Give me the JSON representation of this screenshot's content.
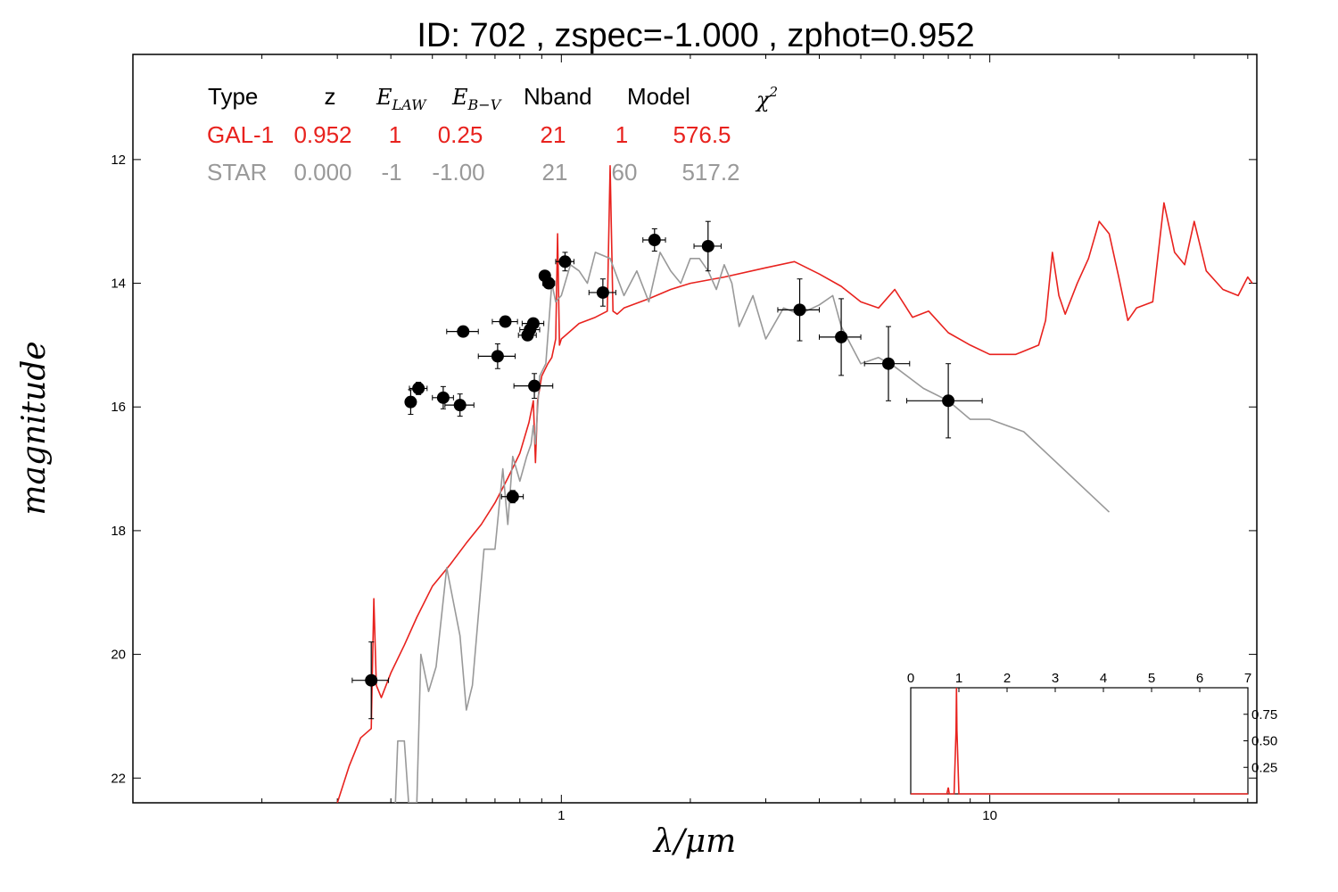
{
  "chart_data": {
    "type": "scatter",
    "title": "ID:  702   , zspec=-1.000 , zphot=0.952",
    "xlabel": "λ/μm",
    "ylabel": "magnitude",
    "xscale": "log",
    "xlim": [
      0.1,
      42
    ],
    "ylim": [
      22.4,
      10.3
    ],
    "x_ticks": [
      {
        "value": 1,
        "label": "1"
      },
      {
        "value": 10,
        "label": "10"
      }
    ],
    "y_ticks": [
      {
        "value": 12,
        "label": "12"
      },
      {
        "value": 14,
        "label": "14"
      },
      {
        "value": 16,
        "label": "16"
      },
      {
        "value": 18,
        "label": "18"
      },
      {
        "value": 20,
        "label": "20"
      },
      {
        "value": 22,
        "label": "22"
      }
    ],
    "table": {
      "headers": [
        "Type",
        "z",
        "E_LAW",
        "E_B-V",
        "Nband",
        "Model",
        "χ²"
      ],
      "rows": [
        {
          "type": "GAL-1",
          "z": "0.952",
          "elaw": "1",
          "ebv": "0.25",
          "nband": "21",
          "model": "1",
          "chi2": "576.5",
          "color": "#e8221e"
        },
        {
          "type": "STAR",
          "z": "0.000",
          "elaw": "-1",
          "ebv": "-1.00",
          "nband": "21",
          "model": "60",
          "chi2": "517.2",
          "color": "#999999"
        }
      ]
    },
    "photometry": [
      {
        "x": 0.36,
        "y": 20.42,
        "xerr": 0.035,
        "yerr": 0.62
      },
      {
        "x": 0.445,
        "y": 15.92,
        "xerr": 0.012,
        "yerr": 0.2
      },
      {
        "x": 0.464,
        "y": 15.7,
        "xerr": 0.022,
        "yerr": 0.1
      },
      {
        "x": 0.53,
        "y": 15.85,
        "xerr": 0.03,
        "yerr": 0.18
      },
      {
        "x": 0.58,
        "y": 15.97,
        "xerr": 0.045,
        "yerr": 0.18
      },
      {
        "x": 0.59,
        "y": 14.78,
        "xerr": 0.05,
        "yerr": 0.08
      },
      {
        "x": 0.71,
        "y": 15.18,
        "xerr": 0.07,
        "yerr": 0.2
      },
      {
        "x": 0.74,
        "y": 14.62,
        "xerr": 0.05,
        "yerr": 0.06
      },
      {
        "x": 0.77,
        "y": 17.45,
        "xerr": 0.045,
        "yerr": 0.1
      },
      {
        "x": 0.834,
        "y": 14.84,
        "xerr": 0.04,
        "yerr": 0.08
      },
      {
        "x": 0.845,
        "y": 14.75,
        "xerr": 0.045,
        "yerr": 0.08
      },
      {
        "x": 0.86,
        "y": 14.65,
        "xerr": 0.05,
        "yerr": 0.08
      },
      {
        "x": 0.865,
        "y": 15.66,
        "xerr": 0.09,
        "yerr": 0.2
      },
      {
        "x": 0.915,
        "y": 13.88,
        "xerr": 0.025,
        "yerr": 0.08
      },
      {
        "x": 0.935,
        "y": 14.0,
        "xerr": 0.03,
        "yerr": 0.08
      },
      {
        "x": 1.02,
        "y": 13.65,
        "xerr": 0.05,
        "yerr": 0.15
      },
      {
        "x": 1.25,
        "y": 14.15,
        "xerr": 0.09,
        "yerr": 0.22
      },
      {
        "x": 1.65,
        "y": 13.3,
        "xerr": 0.1,
        "yerr": 0.18
      },
      {
        "x": 2.2,
        "y": 13.4,
        "xerr": 0.16,
        "yerr": 0.4
      },
      {
        "x": 3.6,
        "y": 14.43,
        "xerr": 0.4,
        "yerr": 0.5
      },
      {
        "x": 4.5,
        "y": 14.87,
        "xerr": 0.5,
        "yerr": 0.62
      },
      {
        "x": 5.8,
        "y": 15.3,
        "xerr": 0.7,
        "yerr": 0.6
      },
      {
        "x": 8.0,
        "y": 15.9,
        "xerr": 1.6,
        "yerr": 0.6
      }
    ],
    "series": [
      {
        "color": "#e8221e",
        "points": [
          [
            0.3,
            22.4
          ],
          [
            0.32,
            21.8
          ],
          [
            0.34,
            21.35
          ],
          [
            0.36,
            21.2
          ],
          [
            0.365,
            19.1
          ],
          [
            0.37,
            20.5
          ],
          [
            0.38,
            20.7
          ],
          [
            0.4,
            20.3
          ],
          [
            0.43,
            19.85
          ],
          [
            0.46,
            19.4
          ],
          [
            0.5,
            18.9
          ],
          [
            0.55,
            18.55
          ],
          [
            0.6,
            18.2
          ],
          [
            0.65,
            17.9
          ],
          [
            0.7,
            17.55
          ],
          [
            0.75,
            17.15
          ],
          [
            0.8,
            16.75
          ],
          [
            0.84,
            16.25
          ],
          [
            0.86,
            15.9
          ],
          [
            0.87,
            16.9
          ],
          [
            0.88,
            15.9
          ],
          [
            0.9,
            15.5
          ],
          [
            0.93,
            15.3
          ],
          [
            0.95,
            15.2
          ],
          [
            0.97,
            14.9
          ],
          [
            0.98,
            13.2
          ],
          [
            0.99,
            15.0
          ],
          [
            1.0,
            14.9
          ],
          [
            1.1,
            14.65
          ],
          [
            1.2,
            14.55
          ],
          [
            1.28,
            14.45
          ],
          [
            1.3,
            12.1
          ],
          [
            1.32,
            14.45
          ],
          [
            1.35,
            14.5
          ],
          [
            1.4,
            14.4
          ],
          [
            1.6,
            14.25
          ],
          [
            1.8,
            14.1
          ],
          [
            2.0,
            14.0
          ],
          [
            2.4,
            13.9
          ],
          [
            3.0,
            13.75
          ],
          [
            3.5,
            13.65
          ],
          [
            4.0,
            13.85
          ],
          [
            4.5,
            14.05
          ],
          [
            5.0,
            14.3
          ],
          [
            5.5,
            14.4
          ],
          [
            6.0,
            14.1
          ],
          [
            6.6,
            14.55
          ],
          [
            7.2,
            14.45
          ],
          [
            8.0,
            14.8
          ],
          [
            9.0,
            15.0
          ],
          [
            10.0,
            15.15
          ],
          [
            11.5,
            15.15
          ],
          [
            13.0,
            15.0
          ],
          [
            13.5,
            14.6
          ],
          [
            14.0,
            13.5
          ],
          [
            14.5,
            14.2
          ],
          [
            15.0,
            14.5
          ],
          [
            16.0,
            14.0
          ],
          [
            17.0,
            13.6
          ],
          [
            18.0,
            13.0
          ],
          [
            19.0,
            13.2
          ],
          [
            20.0,
            13.9
          ],
          [
            21.0,
            14.6
          ],
          [
            22.0,
            14.4
          ],
          [
            24.0,
            14.3
          ],
          [
            25.5,
            12.7
          ],
          [
            27.0,
            13.5
          ],
          [
            28.5,
            13.7
          ],
          [
            30.0,
            13.0
          ],
          [
            32.0,
            13.8
          ],
          [
            35.0,
            14.1
          ],
          [
            38.0,
            14.2
          ],
          [
            40.0,
            13.9
          ],
          [
            41.0,
            14.0
          ]
        ]
      },
      {
        "color": "#999999",
        "points": [
          [
            0.41,
            22.4
          ],
          [
            0.415,
            21.4
          ],
          [
            0.43,
            21.4
          ],
          [
            0.44,
            22.4
          ],
          [
            0.46,
            22.4
          ],
          [
            0.47,
            20.0
          ],
          [
            0.49,
            20.6
          ],
          [
            0.51,
            20.2
          ],
          [
            0.54,
            18.6
          ],
          [
            0.58,
            19.7
          ],
          [
            0.6,
            20.9
          ],
          [
            0.62,
            20.5
          ],
          [
            0.66,
            18.3
          ],
          [
            0.7,
            18.3
          ],
          [
            0.73,
            17.0
          ],
          [
            0.75,
            17.9
          ],
          [
            0.77,
            16.8
          ],
          [
            0.8,
            17.2
          ],
          [
            0.83,
            16.8
          ],
          [
            0.85,
            16.6
          ],
          [
            0.86,
            16.3
          ],
          [
            0.87,
            16.6
          ],
          [
            0.89,
            15.5
          ],
          [
            0.92,
            15.3
          ],
          [
            0.95,
            14.0
          ],
          [
            0.97,
            14.3
          ],
          [
            1.0,
            14.2
          ],
          [
            1.05,
            13.7
          ],
          [
            1.1,
            13.8
          ],
          [
            1.15,
            14.0
          ],
          [
            1.2,
            13.5
          ],
          [
            1.3,
            13.6
          ],
          [
            1.4,
            14.2
          ],
          [
            1.5,
            13.8
          ],
          [
            1.6,
            14.3
          ],
          [
            1.7,
            13.5
          ],
          [
            1.8,
            13.8
          ],
          [
            1.9,
            14.0
          ],
          [
            2.0,
            13.6
          ],
          [
            2.1,
            13.6
          ],
          [
            2.2,
            13.8
          ],
          [
            2.3,
            14.1
          ],
          [
            2.4,
            13.7
          ],
          [
            2.5,
            14.0
          ],
          [
            2.6,
            14.7
          ],
          [
            2.8,
            14.2
          ],
          [
            3.0,
            14.9
          ],
          [
            3.3,
            14.4
          ],
          [
            3.6,
            14.5
          ],
          [
            4.0,
            14.35
          ],
          [
            4.3,
            14.2
          ],
          [
            4.5,
            14.7
          ],
          [
            5.0,
            15.3
          ],
          [
            5.5,
            15.2
          ],
          [
            6.0,
            15.35
          ],
          [
            7.0,
            15.7
          ],
          [
            8.0,
            15.9
          ],
          [
            9.0,
            16.2
          ],
          [
            10.0,
            16.2
          ],
          [
            12.0,
            16.4
          ],
          [
            19.0,
            17.7
          ]
        ]
      }
    ],
    "inset": {
      "type": "line",
      "xlim": [
        0,
        7
      ],
      "ylim": [
        0,
        1.0
      ],
      "x_ticks": [
        {
          "value": 0,
          "label": "0"
        },
        {
          "value": 1,
          "label": "1"
        },
        {
          "value": 2,
          "label": "2"
        },
        {
          "value": 3,
          "label": "3"
        },
        {
          "value": 4,
          "label": "4"
        },
        {
          "value": 5,
          "label": "5"
        },
        {
          "value": 6,
          "label": "6"
        },
        {
          "value": 7,
          "label": "7"
        }
      ],
      "y_ticks": [
        {
          "value": 0.25,
          "label": "0.25"
        },
        {
          "value": 0.5,
          "label": "0.50"
        },
        {
          "value": 0.75,
          "label": "0.75"
        }
      ],
      "color": "#e8221e",
      "points": [
        [
          0,
          0
        ],
        [
          0.75,
          0
        ],
        [
          0.78,
          0.06
        ],
        [
          0.8,
          0
        ],
        [
          0.9,
          0
        ],
        [
          0.94,
          0.6
        ],
        [
          0.95,
          1.0
        ],
        [
          0.96,
          0.6
        ],
        [
          1.0,
          0
        ],
        [
          7,
          0
        ]
      ]
    }
  }
}
